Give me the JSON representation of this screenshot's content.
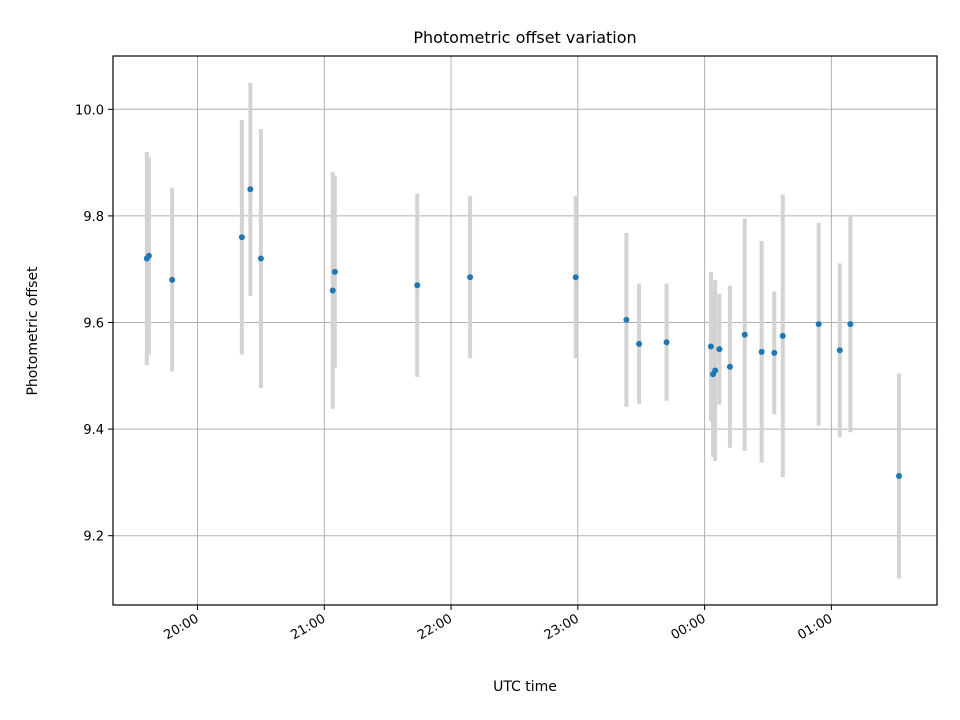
{
  "chart_data": {
    "type": "scatter",
    "title": "Photometric offset variation",
    "xlabel": "UTC time",
    "ylabel": "Photometric offset",
    "x_axis_kind": "time",
    "xlim": [
      "19:20",
      "01:50"
    ],
    "ylim": [
      9.07,
      10.1
    ],
    "x_ticks": [
      "20:00",
      "21:00",
      "22:00",
      "23:00",
      "00:00",
      "01:00"
    ],
    "y_ticks": [
      9.2,
      9.4,
      9.6,
      9.8,
      10.0
    ],
    "y_tick_labels": [
      "9.2",
      "9.4",
      "9.6",
      "9.8",
      "10.0"
    ],
    "grid": true,
    "colors": {
      "point": "#1f77b4",
      "errorbar": "#d3d3d3",
      "grid": "#b0b0b0"
    },
    "points": [
      {
        "x": "19:36",
        "y": 9.72,
        "err": 0.2
      },
      {
        "x": "19:37",
        "y": 9.725,
        "err": 0.185
      },
      {
        "x": "19:48",
        "y": 9.68,
        "err": 0.172
      },
      {
        "x": "20:21",
        "y": 9.76,
        "err": 0.22
      },
      {
        "x": "20:25",
        "y": 9.85,
        "err": 0.2
      },
      {
        "x": "20:30",
        "y": 9.72,
        "err": 0.243
      },
      {
        "x": "21:04",
        "y": 9.66,
        "err": 0.222
      },
      {
        "x": "21:05",
        "y": 9.695,
        "err": 0.18
      },
      {
        "x": "21:44",
        "y": 9.67,
        "err": 0.172
      },
      {
        "x": "22:09",
        "y": 9.685,
        "err": 0.152
      },
      {
        "x": "22:59",
        "y": 9.685,
        "err": 0.152
      },
      {
        "x": "23:23",
        "y": 9.605,
        "err": 0.163
      },
      {
        "x": "23:29",
        "y": 9.56,
        "err": 0.113
      },
      {
        "x": "23:42",
        "y": 9.563,
        "err": 0.11
      },
      {
        "x": "00:03",
        "y": 9.555,
        "err": 0.14
      },
      {
        "x": "00:04",
        "y": 9.503,
        "err": 0.155
      },
      {
        "x": "00:05",
        "y": 9.51,
        "err": 0.17
      },
      {
        "x": "00:07",
        "y": 9.55,
        "err": 0.104
      },
      {
        "x": "00:12",
        "y": 9.517,
        "err": 0.152
      },
      {
        "x": "00:19",
        "y": 9.577,
        "err": 0.218
      },
      {
        "x": "00:27",
        "y": 9.545,
        "err": 0.208
      },
      {
        "x": "00:33",
        "y": 9.543,
        "err": 0.115
      },
      {
        "x": "00:37",
        "y": 9.575,
        "err": 0.265
      },
      {
        "x": "00:54",
        "y": 9.597,
        "err": 0.19
      },
      {
        "x": "01:04",
        "y": 9.548,
        "err": 0.163
      },
      {
        "x": "01:09",
        "y": 9.597,
        "err": 0.203
      },
      {
        "x": "01:32",
        "y": 9.312,
        "err": 0.192
      }
    ]
  }
}
